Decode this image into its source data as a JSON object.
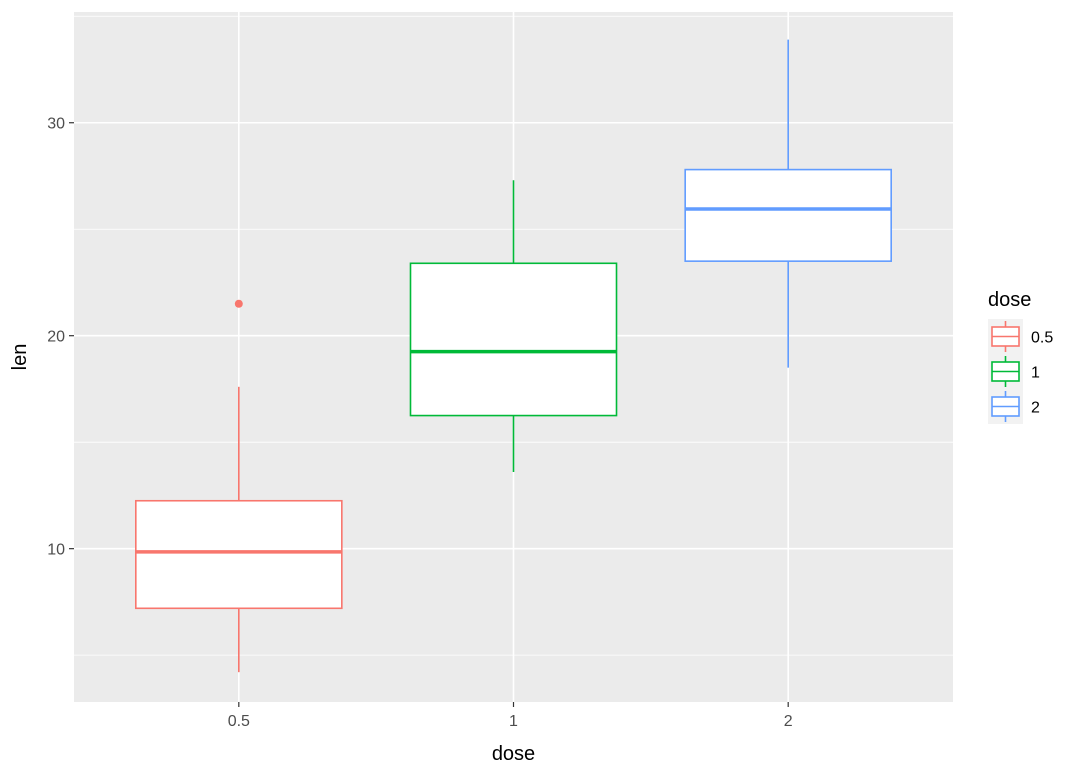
{
  "chart_data": {
    "type": "boxplot",
    "xlabel": "dose",
    "ylabel": "len",
    "categories": [
      "0.5",
      "1",
      "2"
    ],
    "ylim": [
      2.8,
      35.2
    ],
    "y_ticks": [
      10,
      20,
      30
    ],
    "grid": true,
    "legend": {
      "title": "dose",
      "position": "right",
      "entries": [
        "0.5",
        "1",
        "2"
      ]
    },
    "boxes": [
      {
        "category": "0.5",
        "min": 4.2,
        "q1": 7.2,
        "median": 9.85,
        "q3": 12.25,
        "max": 17.6,
        "outliers": [
          21.5
        ],
        "color": "#F8766D"
      },
      {
        "category": "1",
        "min": 13.6,
        "q1": 16.25,
        "median": 19.25,
        "q3": 23.4,
        "max": 27.3,
        "outliers": [],
        "color": "#00BA38"
      },
      {
        "category": "2",
        "min": 18.5,
        "q1": 23.5,
        "median": 25.95,
        "q3": 27.8,
        "max": 33.9,
        "outliers": [],
        "color": "#619CFF"
      }
    ]
  },
  "colors": {
    "panel_background": "#EBEBEB",
    "grid_line": "#FFFFFF"
  }
}
